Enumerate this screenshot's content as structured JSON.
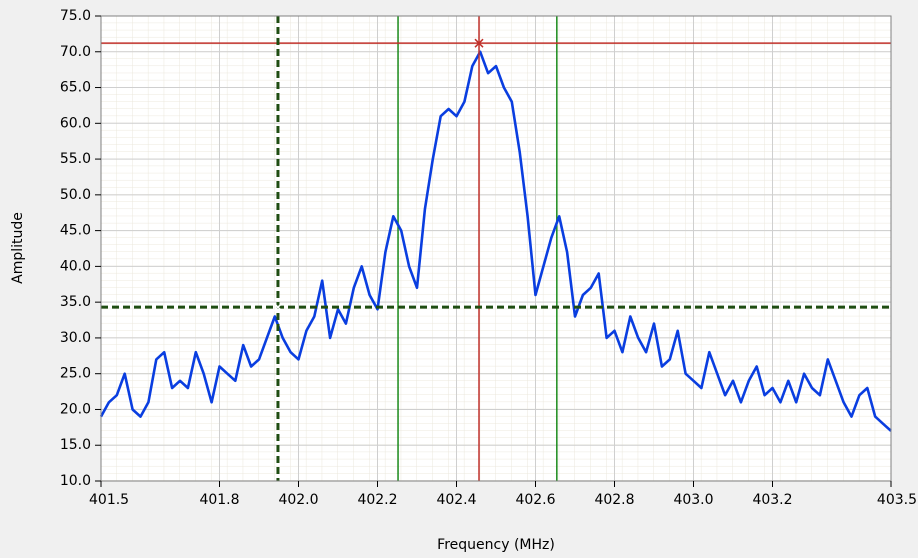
{
  "chart_data": {
    "type": "line",
    "x_label": "Frequency (MHz)",
    "y_label": "Amplitude",
    "xlim": [
      401.5,
      403.5
    ],
    "ylim": [
      10,
      75
    ],
    "xticks": [
      401.5,
      401.8,
      {
        "value": 402,
        "label": "402.0"
      },
      402.2,
      402.4,
      402.6,
      402.8,
      {
        "value": 403,
        "label": "403.0"
      },
      403.2,
      403.5
    ],
    "yticks": [
      {
        "value": 10,
        "label": "10.0"
      },
      {
        "value": 15,
        "label": "15.0"
      },
      {
        "value": 20,
        "label": "20.0"
      },
      {
        "value": 25,
        "label": "25.0"
      },
      {
        "value": 30,
        "label": "30.0"
      },
      {
        "value": 35,
        "label": "35.0"
      },
      {
        "value": 40,
        "label": "40.0"
      },
      {
        "value": 45,
        "label": "45.0"
      },
      {
        "value": 50,
        "label": "50.0"
      },
      {
        "value": 55,
        "label": "55.0"
      },
      {
        "value": 60,
        "label": "60.0"
      },
      {
        "value": 65,
        "label": "65.0"
      },
      {
        "value": 70,
        "label": "70.0"
      },
      {
        "value": 75,
        "label": "75.0"
      }
    ],
    "grid": true,
    "x": [
      401.5,
      401.52,
      401.54,
      401.56,
      401.58,
      401.6,
      401.62,
      401.64,
      401.66,
      401.68,
      401.7,
      401.72,
      401.74,
      401.76,
      401.78,
      401.8,
      401.82,
      401.84,
      401.86,
      401.88,
      401.9,
      401.92,
      401.94,
      401.96,
      401.98,
      402.0,
      402.02,
      402.04,
      402.06,
      402.08,
      402.1,
      402.12,
      402.14,
      402.16,
      402.18,
      402.2,
      402.22,
      402.24,
      402.26,
      402.28,
      402.3,
      402.32,
      402.34,
      402.36,
      402.38,
      402.4,
      402.42,
      402.44,
      402.46,
      402.48,
      402.5,
      402.52,
      402.54,
      402.56,
      402.58,
      402.6,
      402.62,
      402.64,
      402.66,
      402.68,
      402.7,
      402.72,
      402.74,
      402.76,
      402.78,
      402.8,
      402.82,
      402.84,
      402.86,
      402.88,
      402.9,
      402.92,
      402.94,
      402.96,
      402.98,
      403.0,
      403.02,
      403.04,
      403.06,
      403.08,
      403.1,
      403.12,
      403.14,
      403.16,
      403.18,
      403.2,
      403.22,
      403.24,
      403.26,
      403.28,
      403.3,
      403.32,
      403.34,
      403.36,
      403.38,
      403.4,
      403.42,
      403.44,
      403.46,
      403.48,
      403.5
    ],
    "series": [
      {
        "color": "#0a3ee0",
        "values": [
          19,
          21,
          22,
          25,
          20,
          19,
          21,
          27,
          28,
          23,
          24,
          23,
          28,
          25,
          21,
          26,
          25,
          24,
          29,
          26,
          27,
          30,
          33,
          30,
          28,
          27,
          31,
          33,
          38,
          30,
          34,
          32,
          37,
          40,
          36,
          34,
          42,
          47,
          45,
          40,
          37,
          48,
          55,
          61,
          62,
          61,
          63,
          68,
          70,
          67,
          68,
          65,
          63,
          56,
          47,
          36,
          40,
          44,
          47,
          42,
          33,
          36,
          37,
          39,
          30,
          31,
          28,
          33,
          30,
          28,
          32,
          26,
          27,
          31,
          25,
          24,
          23,
          28,
          25,
          22,
          24,
          21,
          24,
          26,
          22,
          23,
          21,
          24,
          21,
          25,
          23,
          22,
          27,
          24,
          21,
          19,
          22,
          23,
          19,
          18,
          17
        ]
      }
    ],
    "cursors": [
      {
        "x": 402.457,
        "y": 71.2,
        "color": "#c0302a",
        "dashed": false
      },
      {
        "x": 401.948,
        "y": 34.3,
        "color": "#1f4d12",
        "dashed": true
      }
    ],
    "vlines": [
      {
        "x": 402.252,
        "color": "#1a8a1a"
      },
      {
        "x": 402.654,
        "color": "#1a8a1a"
      }
    ]
  }
}
